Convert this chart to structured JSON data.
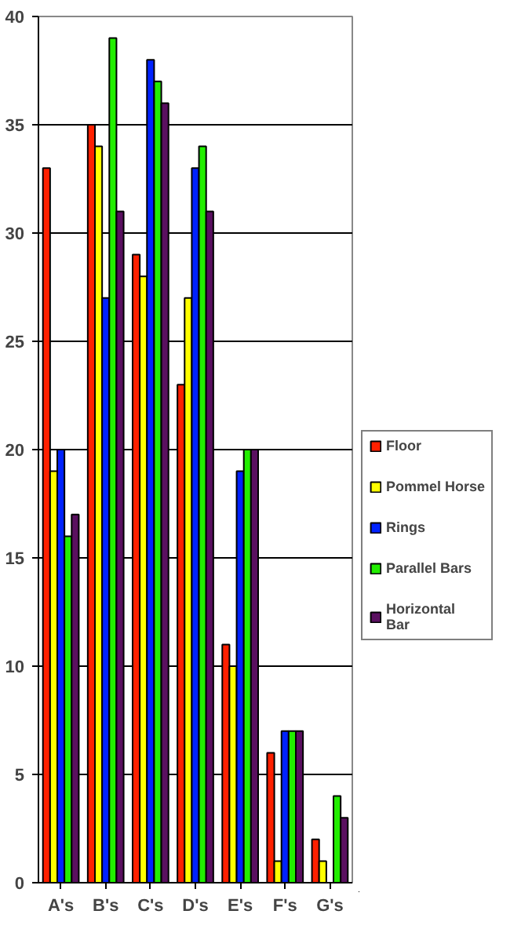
{
  "chart_data": {
    "type": "bar",
    "categories": [
      "A's",
      "B's",
      "C's",
      "D's",
      "E's",
      "F's",
      "G's"
    ],
    "series": [
      {
        "name": "Floor",
        "color": "#ff2000",
        "values": [
          33,
          35,
          29,
          23,
          11,
          6,
          2
        ]
      },
      {
        "name": "Pommel Horse",
        "color": "#ffff00",
        "values": [
          19,
          34,
          28,
          27,
          10,
          1,
          1
        ]
      },
      {
        "name": "Rings",
        "color": "#0022ff",
        "values": [
          20,
          27,
          38,
          33,
          19,
          7,
          0
        ]
      },
      {
        "name": "Parallel Bars",
        "color": "#22ee00",
        "values": [
          16,
          39,
          37,
          34,
          20,
          7,
          4
        ]
      },
      {
        "name": "Horizontal Bar",
        "color": "#5a1060",
        "values": [
          17,
          31,
          36,
          31,
          20,
          7,
          3
        ]
      }
    ],
    "ylim": [
      0,
      40
    ],
    "yticks": [
      0,
      5,
      10,
      15,
      20,
      25,
      30,
      35,
      40
    ],
    "grid": "y",
    "legend": "right"
  }
}
